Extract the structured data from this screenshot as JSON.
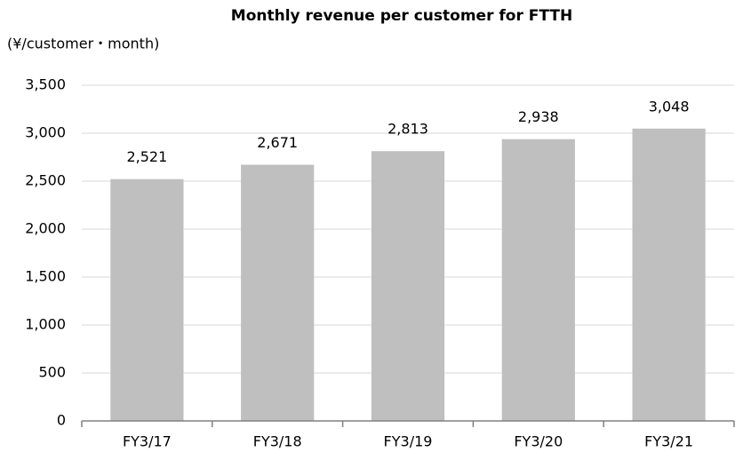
{
  "chart_data": {
    "type": "bar",
    "title": "Monthly revenue per customer for FTTH",
    "y_label": "(¥/customer・month)",
    "categories": [
      "FY3/17",
      "FY3/18",
      "FY3/19",
      "FY3/20",
      "FY3/21"
    ],
    "values": [
      2521,
      2671,
      2813,
      2938,
      3048
    ],
    "value_labels": [
      "2,521",
      "2,671",
      "2,813",
      "2,938",
      "3,048"
    ],
    "color": "#bfbfbf",
    "ylim": [
      0,
      3500
    ],
    "yticks": [
      0,
      500,
      {
        "value": 1000,
        "label": "1,000"
      },
      {
        "value": 1500,
        "label": "1,500"
      },
      {
        "value": 2000,
        "label": "2,000"
      },
      {
        "value": 2500,
        "label": "2,500"
      },
      {
        "value": 3000,
        "label": "3,000"
      },
      {
        "value": 3500,
        "label": "3,500"
      }
    ],
    "grid": true
  }
}
